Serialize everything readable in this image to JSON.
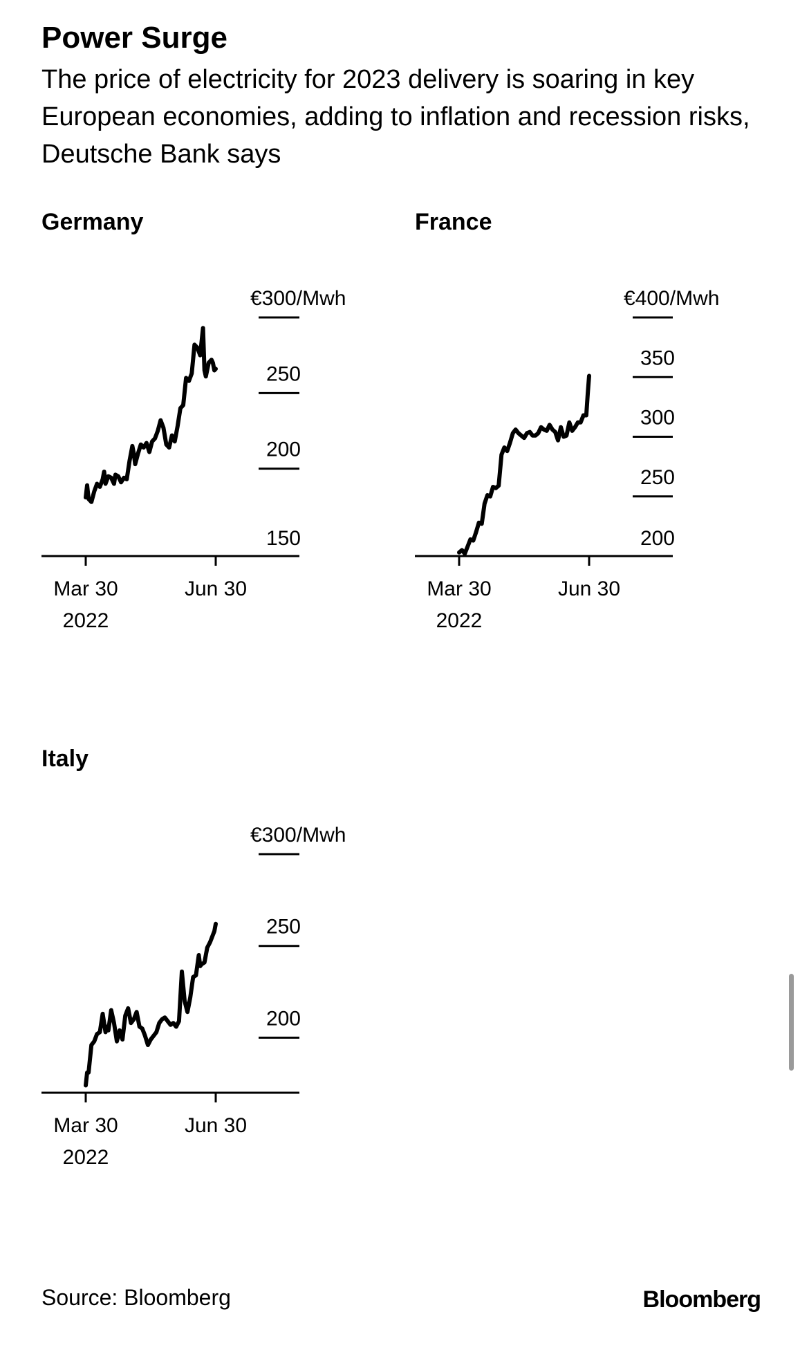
{
  "header": {
    "title": "Power Surge",
    "subtitle": "The price of electricity for 2023 delivery is soaring in key European economies, adding to inflation and recession risks, Deutsche Bank says"
  },
  "footer": {
    "source": "Source: Bloomberg",
    "logo": "Bloomberg"
  },
  "colors": {
    "line": "#000000",
    "background": "#ffffff",
    "scrollbar": "#9a9a9a"
  },
  "chart_data": [
    {
      "type": "line",
      "title": "Germany",
      "ylim": [
        150,
        300
      ],
      "yticks": [
        150,
        200,
        250,
        300
      ],
      "ytick_labels": [
        "150",
        "200",
        "250",
        "€300/Mwh"
      ],
      "xticks": [
        "2022-03-30",
        "2022-06-30"
      ],
      "xtick_labels": [
        "Mar 30",
        "Jun 30"
      ],
      "xtick_sublabels": [
        "2022",
        ""
      ],
      "xlim": [
        "2022-03-30",
        "2022-07-30"
      ],
      "grid": false,
      "legend": "none",
      "series": [
        {
          "x": [
            "2022-03-30",
            "2022-03-31",
            "2022-04-01",
            "2022-04-03",
            "2022-04-05",
            "2022-04-07",
            "2022-04-09",
            "2022-04-11",
            "2022-04-12",
            "2022-04-13",
            "2022-04-15",
            "2022-04-17",
            "2022-04-19",
            "2022-04-20",
            "2022-04-22",
            "2022-04-24",
            "2022-04-26",
            "2022-04-28",
            "2022-04-30",
            "2022-05-02",
            "2022-05-03",
            "2022-05-04",
            "2022-05-06",
            "2022-05-08",
            "2022-05-10",
            "2022-05-12",
            "2022-05-14",
            "2022-05-16",
            "2022-05-18",
            "2022-05-20",
            "2022-05-22",
            "2022-05-24",
            "2022-05-26",
            "2022-05-28",
            "2022-05-30",
            "2022-06-01",
            "2022-06-03",
            "2022-06-05",
            "2022-06-07",
            "2022-06-09",
            "2022-06-11",
            "2022-06-13",
            "2022-06-15",
            "2022-06-17",
            "2022-06-19",
            "2022-06-21",
            "2022-06-22",
            "2022-06-23",
            "2022-06-25",
            "2022-06-27",
            "2022-06-28",
            "2022-06-29",
            "2022-06-30"
          ],
          "values": [
            181,
            189,
            180,
            178,
            185,
            190,
            188,
            193,
            198,
            190,
            195,
            194,
            190,
            196,
            195,
            191,
            194,
            193,
            205,
            215,
            210,
            203,
            210,
            216,
            214,
            217,
            211,
            218,
            220,
            225,
            232,
            227,
            216,
            214,
            222,
            218,
            228,
            240,
            242,
            260,
            258,
            263,
            282,
            280,
            275,
            293,
            265,
            261,
            270,
            272,
            270,
            265,
            266
          ]
        }
      ]
    },
    {
      "type": "line",
      "title": "France",
      "ylim": [
        200,
        400
      ],
      "yticks": [
        200,
        250,
        300,
        350,
        400
      ],
      "ytick_labels": [
        "200",
        "250",
        "300",
        "350",
        "€400/Mwh"
      ],
      "xticks": [
        "2022-03-30",
        "2022-06-30"
      ],
      "xtick_labels": [
        "Mar 30",
        "Jun 30"
      ],
      "xtick_sublabels": [
        "2022",
        ""
      ],
      "xlim": [
        "2022-03-30",
        "2022-07-30"
      ],
      "grid": false,
      "legend": "none",
      "series": [
        {
          "x": [
            "2022-03-30",
            "2022-04-01",
            "2022-04-03",
            "2022-04-05",
            "2022-04-07",
            "2022-04-09",
            "2022-04-11",
            "2022-04-13",
            "2022-04-15",
            "2022-04-17",
            "2022-04-19",
            "2022-04-21",
            "2022-04-23",
            "2022-04-25",
            "2022-04-27",
            "2022-04-29",
            "2022-05-01",
            "2022-05-03",
            "2022-05-05",
            "2022-05-07",
            "2022-05-09",
            "2022-05-11",
            "2022-05-13",
            "2022-05-15",
            "2022-05-17",
            "2022-05-19",
            "2022-05-21",
            "2022-05-23",
            "2022-05-25",
            "2022-05-27",
            "2022-05-29",
            "2022-05-31",
            "2022-06-02",
            "2022-06-04",
            "2022-06-06",
            "2022-06-08",
            "2022-06-10",
            "2022-06-12",
            "2022-06-14",
            "2022-06-16",
            "2022-06-18",
            "2022-06-20",
            "2022-06-22",
            "2022-06-24",
            "2022-06-26",
            "2022-06-28",
            "2022-06-29",
            "2022-06-30"
          ],
          "values": [
            203,
            205,
            202,
            208,
            214,
            213,
            220,
            228,
            227,
            244,
            251,
            250,
            258,
            257,
            259,
            285,
            291,
            288,
            295,
            303,
            306,
            303,
            301,
            299,
            303,
            304,
            301,
            301,
            303,
            308,
            306,
            305,
            310,
            306,
            304,
            297,
            308,
            300,
            301,
            312,
            305,
            308,
            312,
            312,
            318,
            318,
            336,
            351
          ]
        }
      ]
    },
    {
      "type": "line",
      "title": "Italy",
      "ylim": [
        170,
        300
      ],
      "yticks": [
        200,
        250,
        300
      ],
      "ytick_labels": [
        "200",
        "250",
        "€300/Mwh"
      ],
      "xticks": [
        "2022-03-30",
        "2022-06-30"
      ],
      "xtick_labels": [
        "Mar 30",
        "Jun 30"
      ],
      "xtick_sublabels": [
        "2022",
        ""
      ],
      "xlim": [
        "2022-03-30",
        "2022-07-30"
      ],
      "grid": false,
      "legend": "none",
      "series": [
        {
          "x": [
            "2022-03-30",
            "2022-03-31",
            "2022-04-01",
            "2022-04-03",
            "2022-04-05",
            "2022-04-07",
            "2022-04-09",
            "2022-04-11",
            "2022-04-13",
            "2022-04-14",
            "2022-04-15",
            "2022-04-17",
            "2022-04-19",
            "2022-04-21",
            "2022-04-23",
            "2022-04-25",
            "2022-04-27",
            "2022-04-29",
            "2022-05-01",
            "2022-05-03",
            "2022-05-05",
            "2022-05-07",
            "2022-05-09",
            "2022-05-11",
            "2022-05-13",
            "2022-05-15",
            "2022-05-17",
            "2022-05-19",
            "2022-05-21",
            "2022-05-23",
            "2022-05-25",
            "2022-05-27",
            "2022-05-29",
            "2022-05-31",
            "2022-06-02",
            "2022-06-04",
            "2022-06-06",
            "2022-06-08",
            "2022-06-10",
            "2022-06-12",
            "2022-06-14",
            "2022-06-16",
            "2022-06-18",
            "2022-06-19",
            "2022-06-20",
            "2022-06-22",
            "2022-06-24",
            "2022-06-26",
            "2022-06-28",
            "2022-06-29",
            "2022-06-30"
          ],
          "values": [
            174,
            181,
            181,
            196,
            198,
            202,
            203,
            213,
            203,
            206,
            204,
            215,
            208,
            198,
            204,
            199,
            212,
            216,
            208,
            210,
            214,
            206,
            205,
            201,
            196,
            199,
            201,
            203,
            208,
            210,
            211,
            209,
            207,
            208,
            206,
            209,
            236,
            220,
            214,
            222,
            233,
            234,
            245,
            239,
            240,
            241,
            249,
            252,
            256,
            258,
            262
          ]
        }
      ]
    }
  ]
}
